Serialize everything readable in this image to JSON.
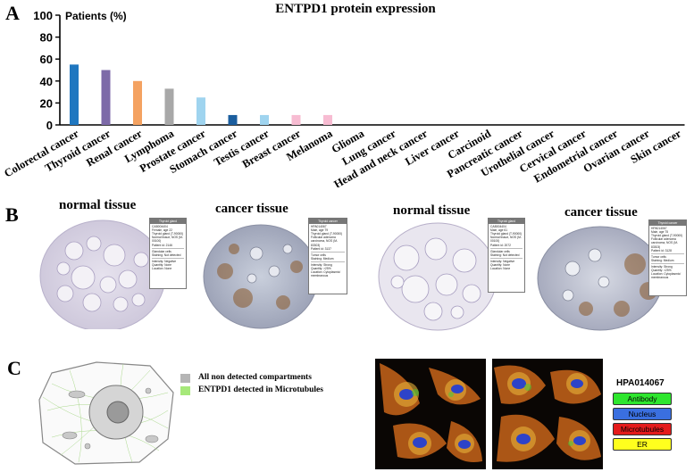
{
  "panel_a": {
    "letter": "A",
    "title": "ENTPD1 protein expression",
    "chart_data": {
      "type": "bar",
      "title": "ENTPD1 protein expression",
      "ylabel": "Patients (%)",
      "xlabel": "",
      "ylim": [
        0,
        100
      ],
      "yticks": [
        0,
        20,
        40,
        60,
        80,
        100
      ],
      "grid": false,
      "categories": [
        "Colorectal cancer",
        "Thyroid cancer",
        "Renal cancer",
        "Lymphoma",
        "Prostate cancer",
        "Stomach cancer",
        "Testis cancer",
        "Breast cancer",
        "Melanoma",
        "Glioma",
        "Lung cancer",
        "Head and neck cancer",
        "Liver cancer",
        "Carcinoid",
        "Pancreatic cancer",
        "Urothelial cancer",
        "Cervical cancer",
        "Endometrial cancer",
        "Ovarian cancer",
        "Skin cancer"
      ],
      "values": [
        55,
        50,
        40,
        33,
        25,
        9,
        9,
        9,
        9,
        0,
        0,
        0,
        0,
        0,
        0,
        0,
        0,
        0,
        0,
        0
      ],
      "colors": [
        "#1f77c0",
        "#7d6aa8",
        "#f4a261",
        "#a8a8a8",
        "#9fd4ef",
        "#1b5e9e",
        "#9fd4ef",
        "#f7bcd2",
        "#f7bcd2",
        "#f7bcd2",
        "#f7bcd2",
        "#f7bcd2",
        "#f7bcd2",
        "#f7bcd2",
        "#f7bcd2",
        "#f7bcd2",
        "#f7bcd2",
        "#f7bcd2",
        "#f7bcd2",
        "#f7bcd2"
      ]
    }
  },
  "panel_b": {
    "letter": "B",
    "images": [
      {
        "label": "normal tissue",
        "card_header": "Thyroid gland",
        "card_lines": [
          "CAB004404",
          "Female, age 22",
          "Thyroid gland (T-90000)",
          "Normal tissue, NOS (M-00100)",
          "Patient id: 2146"
        ],
        "section_title": "Glandular cells",
        "staining": "Staining: Not detected",
        "details": [
          "Intensity: Negative",
          "Quantity: None",
          "Location: None"
        ]
      },
      {
        "label": "cancer tissue",
        "card_header": "Thyroid cancer",
        "card_lines": [
          "HPA014067",
          "Male, age 79",
          "Thyroid gland (T-90000)",
          "Follicular adenoma carcinoma, NOS (M-83303)",
          "Patient id: 3137"
        ],
        "section_title": "Tumor cells",
        "staining": "Staining: Medium",
        "details": [
          "Intensity: Strong",
          "Quantity: >25%",
          "Location: Cytoplasmic/ membranous"
        ]
      },
      {
        "label": "normal tissue",
        "card_header": "Thyroid gland",
        "card_lines": [
          "CAB004404",
          "Male, age 61",
          "Thyroid gland (T-90000)",
          "Normal tissue, NOS (M-00100)",
          "Patient id: 2072"
        ],
        "section_title": "Glandular cells",
        "staining": "Staining: Not detected",
        "details": [
          "Intensity: Negative",
          "Quantity: None",
          "Location: None"
        ]
      },
      {
        "label": "cancer tissue",
        "card_header": "Thyroid cancer",
        "card_lines": [
          "HPA014067",
          "Male, age 75",
          "Thyroid gland (T-90000)",
          "Follicular adenoma carcinoma, NOS (M-83303)",
          "Patient id: 3128"
        ],
        "section_title": "Tumor cells",
        "staining": "Staining: Medium",
        "details": [
          "Intensity: Strong",
          "Quantity: >25%",
          "Location: Cytoplasmic/ membranous"
        ]
      }
    ]
  },
  "panel_c": {
    "letter": "C",
    "legend": [
      {
        "label": "All non detected compartments",
        "color": "#b5b5b5"
      },
      {
        "label": "ENTPD1 detected in Microtubules",
        "color": "#a6e87a"
      }
    ],
    "hpa_id": "HPA014067",
    "channels": [
      {
        "label": "Antibody",
        "color": "#2ee62e"
      },
      {
        "label": "Nucleus",
        "color": "#3a6fe0"
      },
      {
        "label": "Microtubules",
        "color": "#e41b1b"
      },
      {
        "label": "ER",
        "color": "#ffff1e"
      }
    ]
  }
}
